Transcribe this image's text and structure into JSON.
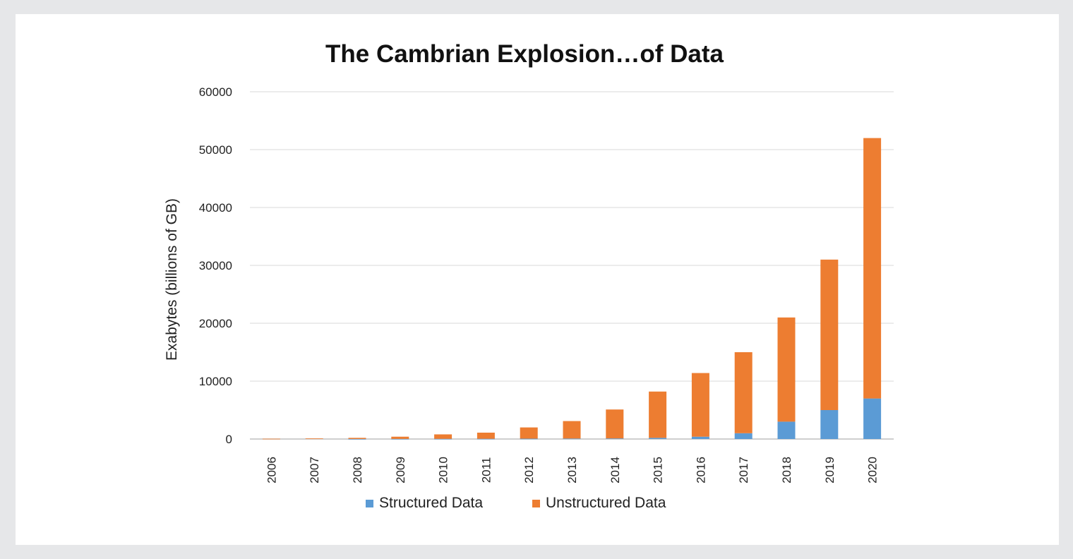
{
  "chart_data": {
    "type": "bar",
    "stacked": true,
    "title": "The Cambrian Explosion…of Data",
    "ylabel": "Exabytes (billions of GB)",
    "xlabel": "",
    "ylim": [
      0,
      60000
    ],
    "yticks": [
      0,
      10000,
      20000,
      30000,
      40000,
      50000,
      60000
    ],
    "grid": true,
    "legend": "bottom",
    "categories": [
      "2006",
      "2007",
      "2008",
      "2009",
      "2010",
      "2011",
      "2012",
      "2013",
      "2014",
      "2015",
      "2016",
      "2017",
      "2018",
      "2019",
      "2020"
    ],
    "series": [
      {
        "name": "Structured Data",
        "color": "#5b9bd5",
        "values": [
          0,
          0,
          10,
          20,
          30,
          40,
          60,
          80,
          100,
          200,
          400,
          1000,
          3000,
          5000,
          7000
        ]
      },
      {
        "name": "Unstructured Data",
        "color": "#ed7d31",
        "values": [
          50,
          100,
          190,
          380,
          770,
          1060,
          1940,
          3020,
          5000,
          8000,
          11000,
          14000,
          18000,
          26000,
          45000
        ]
      }
    ]
  }
}
